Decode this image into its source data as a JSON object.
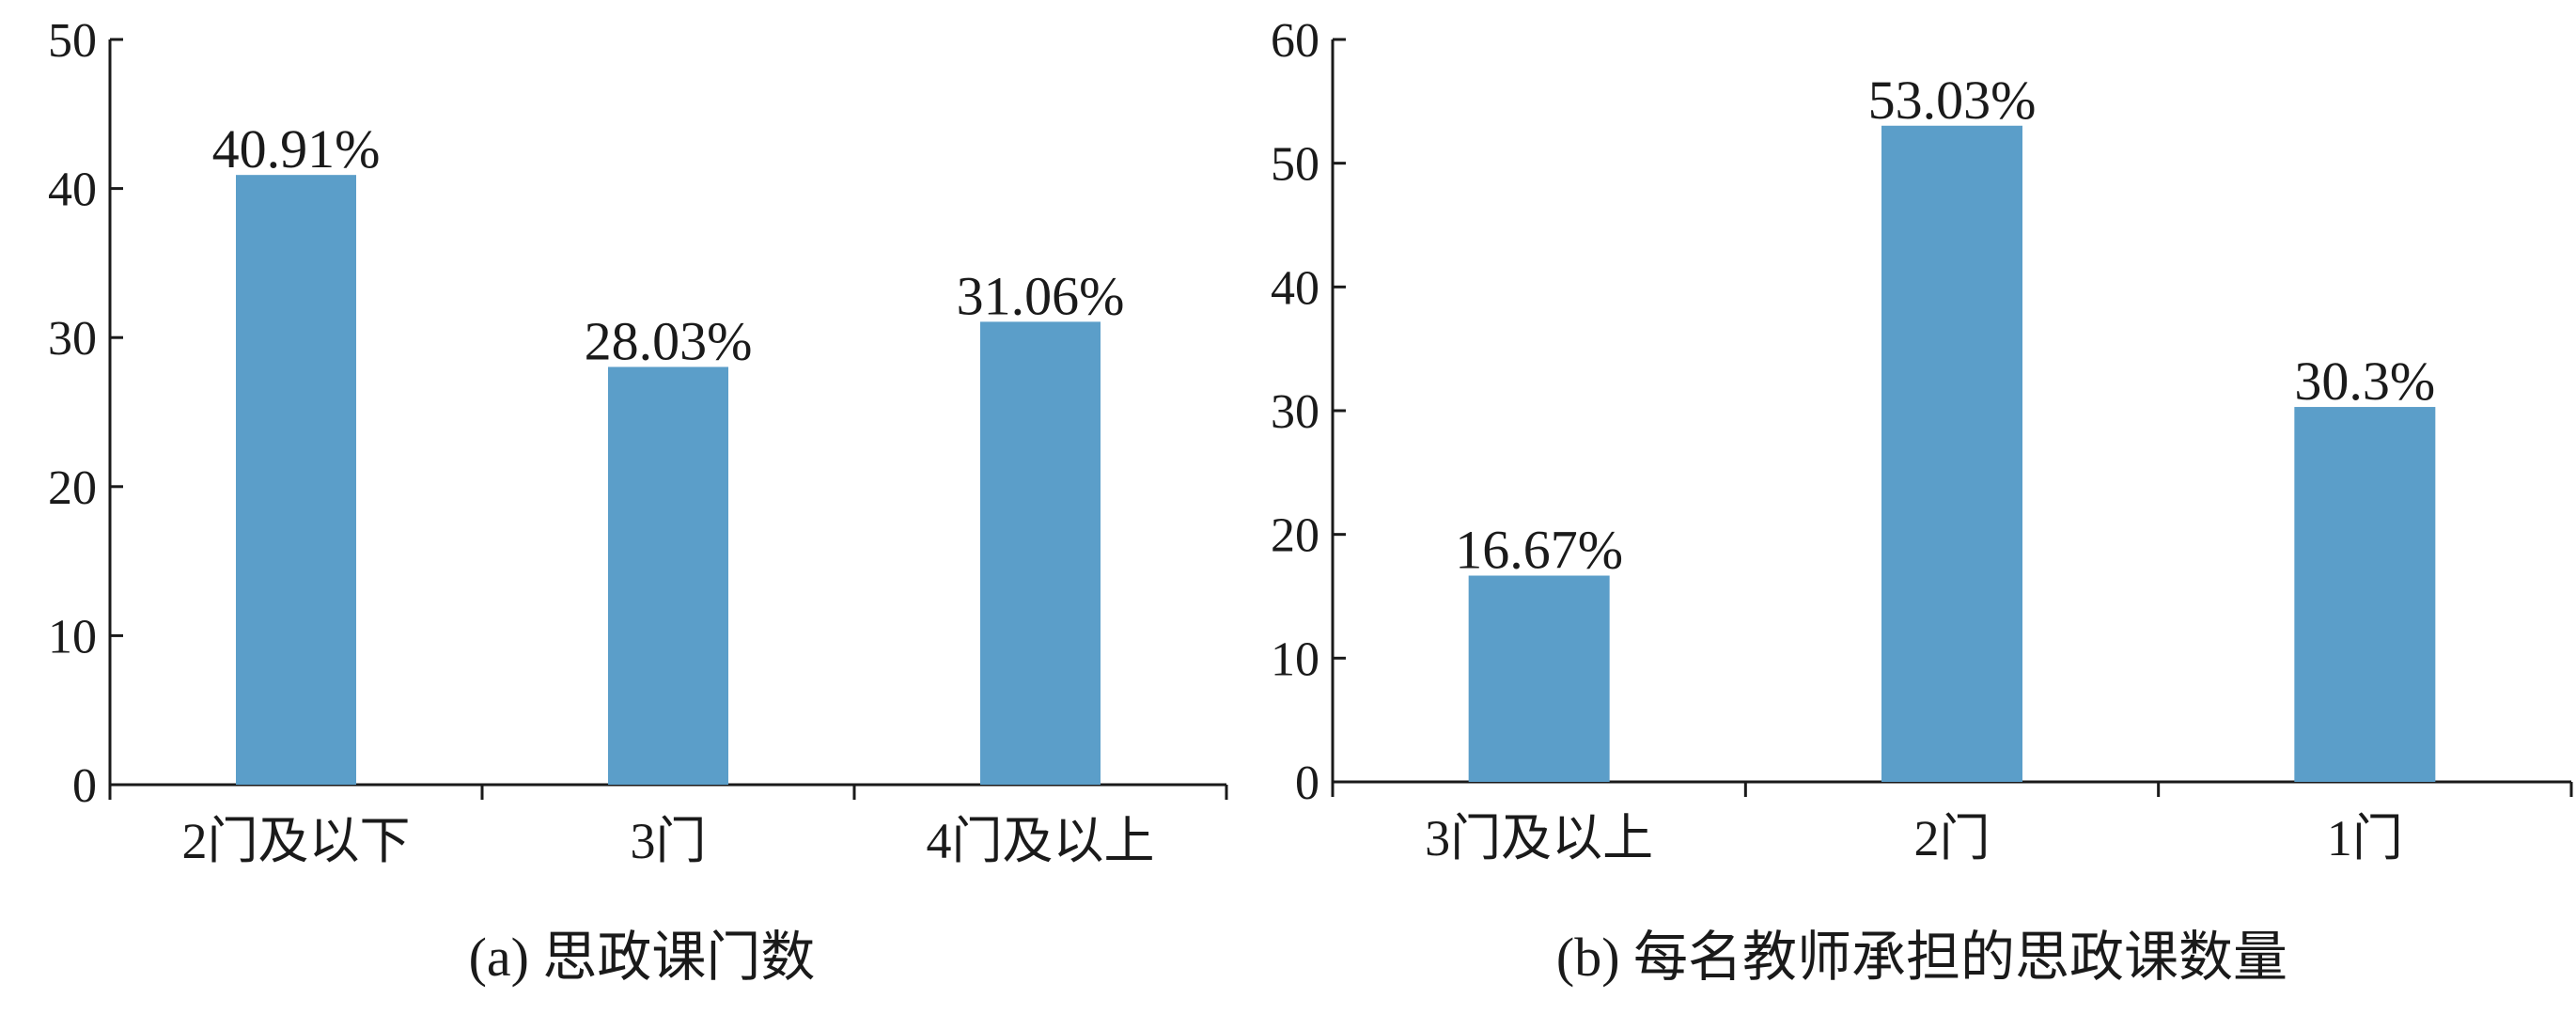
{
  "chart_data": [
    {
      "type": "bar",
      "caption": "(a) 思政课门数",
      "categories": [
        "2门及以下",
        "3门",
        "4门及以上"
      ],
      "values": [
        40.91,
        28.03,
        31.06
      ],
      "value_labels": [
        "40.91%",
        "28.03%",
        "31.06%"
      ],
      "ylim": [
        0,
        50
      ],
      "yticks": [
        0,
        10,
        20,
        30,
        40,
        50
      ],
      "ytick_labels": [
        "0",
        "10",
        "20",
        "30",
        "40",
        "50"
      ],
      "bar_color": "#5b9ec9",
      "grid": false
    },
    {
      "type": "bar",
      "caption": "(b) 每名教师承担的思政课数量",
      "categories": [
        "3门及以上",
        "2门",
        "1门"
      ],
      "values": [
        16.67,
        53.03,
        30.3
      ],
      "value_labels": [
        "16.67%",
        "53.03%",
        "30.3%"
      ],
      "ylim": [
        0,
        60
      ],
      "yticks": [
        0,
        10,
        20,
        30,
        40,
        50,
        60
      ],
      "ytick_labels": [
        "0",
        "10",
        "20",
        "30",
        "40",
        "50",
        "60"
      ],
      "bar_color": "#5b9ec9",
      "grid": false
    }
  ]
}
